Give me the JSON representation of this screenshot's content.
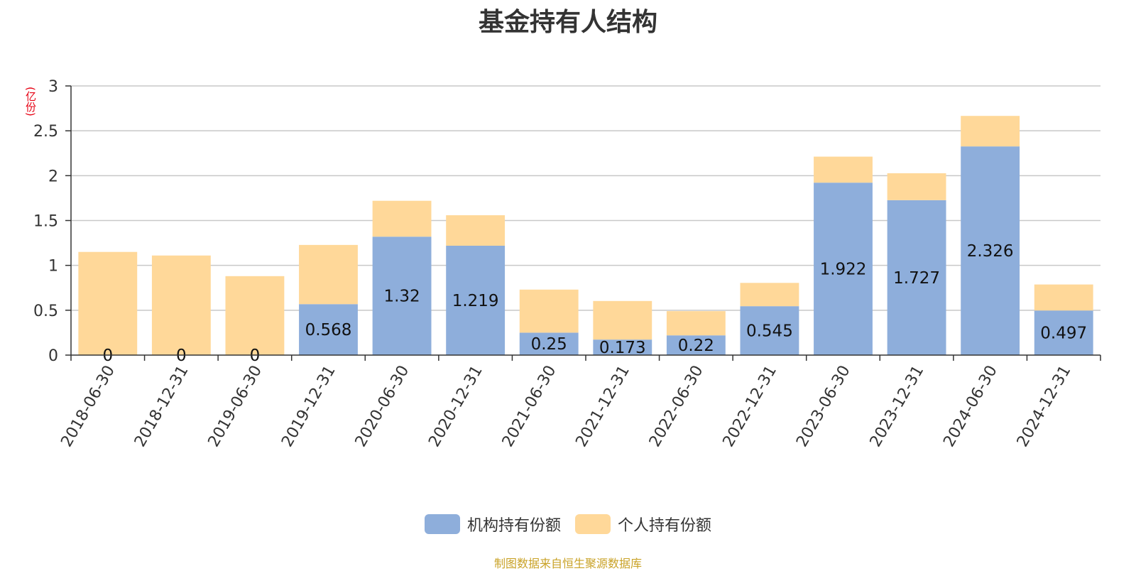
{
  "chart_data": {
    "type": "bar",
    "stacked": true,
    "title": "基金持有人结构",
    "y_unit": "(亿份)",
    "categories": [
      "2018-06-30",
      "2018-12-31",
      "2019-06-30",
      "2019-12-31",
      "2020-06-30",
      "2020-12-31",
      "2021-06-30",
      "2021-12-31",
      "2022-06-30",
      "2022-12-31",
      "2023-06-30",
      "2023-12-31",
      "2024-06-30",
      "2024-12-31"
    ],
    "ylim": [
      0,
      3
    ],
    "yticks": [
      "0",
      "0.5",
      "1",
      "1.5",
      "2",
      "2.5",
      "3"
    ],
    "grid": true,
    "legend_position": "bottom",
    "series": [
      {
        "name": "机构持有份额",
        "color": "#8eaedb",
        "values": [
          0,
          0,
          0,
          0.568,
          1.32,
          1.219,
          0.25,
          0.173,
          0.22,
          0.545,
          1.922,
          1.727,
          2.326,
          0.497
        ],
        "labels": [
          "0",
          "0",
          "0",
          "0.568",
          "1.32",
          "1.219",
          "0.25",
          "0.173",
          "0.22",
          "0.545",
          "1.922",
          "1.727",
          "2.326",
          "0.497"
        ]
      },
      {
        "name": "个人持有份额",
        "color": "#ffd899",
        "values": [
          1.15,
          1.11,
          0.88,
          0.66,
          0.4,
          0.34,
          0.48,
          0.43,
          0.27,
          0.26,
          0.29,
          0.3,
          0.34,
          0.29
        ]
      }
    ]
  },
  "footer": {
    "source": "制图数据来自恒生聚源数据库"
  }
}
